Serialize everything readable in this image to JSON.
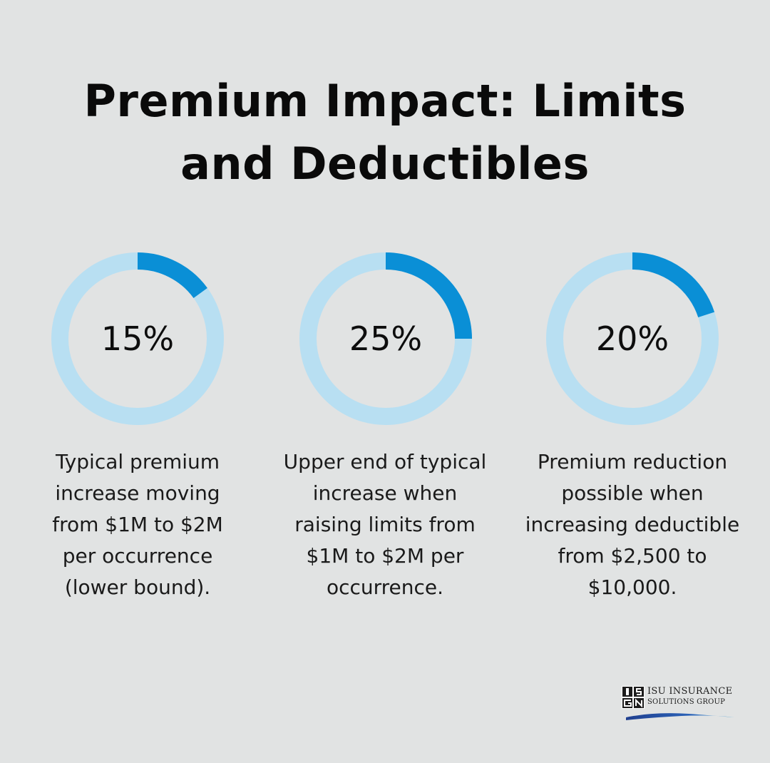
{
  "title": {
    "line1": "Premium Impact: Limits",
    "line2": "and Deductibles"
  },
  "colors": {
    "background": "#e1e3e3",
    "ring_track": "#b8dff2",
    "ring_fill": "#0a8fd6"
  },
  "chart_data": {
    "type": "donut",
    "items": [
      {
        "label": "15%",
        "value": 15,
        "description": [
          "Typical premium",
          "increase moving",
          "from $1M to $2M",
          "per occurrence",
          "(lower bound)."
        ]
      },
      {
        "label": "25%",
        "value": 25,
        "description": [
          "Upper end of typical",
          "increase when",
          "raising limits from",
          "$1M to $2M per",
          "occurrence."
        ]
      },
      {
        "label": "20%",
        "value": 20,
        "description": [
          "Premium reduction",
          "possible when",
          "increasing deductible",
          "from $2,500 to",
          "$10,000."
        ]
      }
    ]
  },
  "logo": {
    "mark_text": "ISG",
    "line1": "ISU INSURANCE",
    "line2": "SOLUTIONS GROUP"
  }
}
